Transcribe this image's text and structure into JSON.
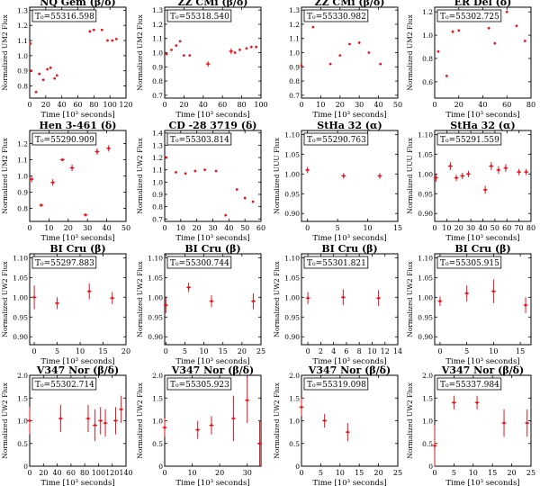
{
  "figure": {
    "marker_color": "#e8141c",
    "time_label": "Time [10³ seconds]"
  },
  "chart_data": [
    {
      "type": "scatter",
      "title": "NQ Gem (β/δ)",
      "annotation": "T₀=55316.598",
      "ylabel": "Normalized UM2 Flux",
      "xlabel": "Time [10³ seconds]",
      "xlim": [
        0,
        120
      ],
      "ylim": [
        0.72,
        1.32
      ],
      "xticks": [
        0,
        20,
        40,
        60,
        80,
        100,
        120
      ],
      "yticks": [
        0.8,
        0.9,
        1.0,
        1.1,
        1.2,
        1.3
      ],
      "ytick_labels": [
        "0.8",
        "0.9",
        "1.0",
        "1.1",
        "1.2",
        "1.3"
      ],
      "points": [
        [
          1,
          1.08
        ],
        [
          2,
          0.9
        ],
        [
          8,
          0.76
        ],
        [
          12,
          0.88
        ],
        [
          17,
          0.84
        ],
        [
          22,
          0.91
        ],
        [
          26,
          0.92
        ],
        [
          31,
          0.85
        ],
        [
          34,
          0.87
        ],
        [
          75,
          1.16
        ],
        [
          80,
          1.17
        ],
        [
          90,
          1.17
        ],
        [
          97,
          1.1
        ],
        [
          103,
          1.1
        ],
        [
          108,
          1.11
        ]
      ],
      "err": [
        0,
        0,
        0,
        0,
        0,
        0,
        0,
        0,
        0,
        0,
        0,
        0,
        0,
        0,
        0
      ]
    },
    {
      "type": "scatter",
      "title": "ZZ CMi (β/δ)",
      "annotation": "T₀=55318.540",
      "ylabel": "Normalized UM2 Flux",
      "xlabel": "Time [10³ seconds]",
      "xlim": [
        0,
        100
      ],
      "ylim": [
        0.68,
        1.32
      ],
      "xticks": [
        0,
        20,
        40,
        60,
        80,
        100
      ],
      "yticks": [
        0.7,
        0.8,
        0.9,
        1.0,
        1.1,
        1.2,
        1.3
      ],
      "ytick_labels": [
        "0.7",
        "0.8",
        "0.9",
        "1.0",
        "1.1",
        "1.2",
        "1.3"
      ],
      "points": [
        [
          2,
          0.99
        ],
        [
          7,
          1.02
        ],
        [
          12,
          1.05
        ],
        [
          16,
          1.08
        ],
        [
          20,
          0.98
        ],
        [
          26,
          0.98
        ],
        [
          45,
          0.92
        ],
        [
          69,
          1.01
        ],
        [
          73,
          1.0
        ],
        [
          78,
          1.02
        ],
        [
          85,
          1.03
        ],
        [
          90,
          1.04
        ],
        [
          95,
          1.04
        ]
      ],
      "err": [
        0,
        0,
        0,
        0,
        0,
        0,
        0.02,
        0.02,
        0,
        0,
        0,
        0,
        0
      ]
    },
    {
      "type": "scatter",
      "title": "ZZ CMi (β/δ)",
      "annotation": "T₀=55330.982",
      "ylabel": "",
      "xlabel": "Time [10³ seconds]",
      "xlim": [
        0,
        50
      ],
      "ylim": [
        0.68,
        1.32
      ],
      "xticks": [
        0,
        10,
        20,
        30,
        40,
        50
      ],
      "yticks": [
        0.7,
        0.8,
        0.9,
        1.0,
        1.1,
        1.2,
        1.3
      ],
      "ytick_labels": [
        "0.7",
        "0.8",
        "0.9",
        "1.0",
        "1.1",
        "1.2",
        "1.3"
      ],
      "points": [
        [
          0,
          0.91
        ],
        [
          6,
          1.18
        ],
        [
          15,
          0.92
        ],
        [
          20,
          0.98
        ],
        [
          25,
          1.06
        ],
        [
          30,
          1.07
        ],
        [
          35,
          1.0
        ],
        [
          41,
          0.92
        ]
      ],
      "err": [
        0,
        0,
        0,
        0,
        0,
        0,
        0,
        0
      ]
    },
    {
      "type": "scatter",
      "title": "ER Del (δ)",
      "annotation": "T₀=55302.725",
      "ylabel": "Normalized UM2 Flux",
      "xlabel": "Time [10³ seconds]",
      "xlim": [
        0,
        80
      ],
      "ylim": [
        0.46,
        1.24
      ],
      "xticks": [
        0,
        20,
        40,
        60,
        80
      ],
      "yticks": [
        0.6,
        0.8,
        1.0,
        1.2
      ],
      "ytick_labels": [
        "0.6",
        "0.8",
        "1.0",
        "1.2"
      ],
      "points": [
        [
          3,
          0.86
        ],
        [
          10,
          0.65
        ],
        [
          15,
          1.03
        ],
        [
          20,
          1.04
        ],
        [
          45,
          1.06
        ],
        [
          50,
          0.93
        ],
        [
          60,
          1.2
        ],
        [
          68,
          1.08
        ],
        [
          75,
          0.95
        ]
      ],
      "err": [
        0,
        0,
        0,
        0,
        0,
        0,
        0,
        0,
        0
      ]
    },
    {
      "type": "scatter",
      "title": "Hen 3-461 (δ)",
      "annotation": "T₀=55290.909",
      "ylabel": "Normalized UM2 Flux",
      "xlabel": "Time [10³ seconds]",
      "xlim": [
        0,
        50
      ],
      "ylim": [
        0.72,
        1.28
      ],
      "xticks": [
        0,
        10,
        20,
        30,
        40,
        50
      ],
      "yticks": [
        0.8,
        0.9,
        1.0,
        1.1,
        1.2
      ],
      "ytick_labels": [
        "0.8",
        "0.9",
        "1.0",
        "1.1",
        "1.2"
      ],
      "points": [
        [
          1,
          0.98
        ],
        [
          6,
          0.82
        ],
        [
          12,
          0.96
        ],
        [
          17,
          1.1
        ],
        [
          22,
          1.05
        ],
        [
          29,
          0.76
        ],
        [
          35,
          1.15
        ],
        [
          41,
          1.17
        ]
      ],
      "err": [
        0.02,
        0.01,
        0.02,
        0.01,
        0.02,
        0.01,
        0.02,
        0.02
      ]
    },
    {
      "type": "scatter",
      "title": "CD -28 3719 (δ)",
      "annotation": "T₀=55303.814",
      "ylabel": "Normalized UW2 Flux",
      "xlabel": "Time [10³ seconds]",
      "xlim": [
        0,
        60
      ],
      "ylim": [
        0.68,
        1.42
      ],
      "xticks": [
        0,
        10,
        20,
        30,
        40,
        50,
        60
      ],
      "yticks": [
        0.7,
        0.8,
        0.9,
        1.0,
        1.1,
        1.2,
        1.3,
        1.4
      ],
      "ytick_labels": [
        "0.7",
        "0.8",
        "0.9",
        "1.0",
        "1.1",
        "1.2",
        "1.3",
        "1.4"
      ],
      "points": [
        [
          1,
          1.2
        ],
        [
          7,
          1.08
        ],
        [
          13,
          1.07
        ],
        [
          19,
          1.09
        ],
        [
          25,
          1.1
        ],
        [
          32,
          1.09
        ],
        [
          38,
          0.73
        ],
        [
          45,
          0.94
        ],
        [
          50,
          0.87
        ],
        [
          55,
          0.84
        ]
      ],
      "err": [
        0,
        0,
        0,
        0,
        0,
        0,
        0,
        0,
        0,
        0
      ]
    },
    {
      "type": "scatter",
      "title": "StHa 32 (α)",
      "annotation": "T₀=55290.763",
      "ylabel": "Normalized UUU Flux",
      "xlabel": "Time [10³ seconds]",
      "xlim": [
        -1,
        15
      ],
      "ylim": [
        0.88,
        1.11
      ],
      "xticks": [
        0,
        5,
        10,
        15
      ],
      "yticks": [
        0.9,
        0.95,
        1.0,
        1.05,
        1.1
      ],
      "ytick_labels": [
        "0.90",
        "0.95",
        "1.00",
        "1.05",
        "1.10"
      ],
      "points": [
        [
          0,
          1.01
        ],
        [
          6,
          0.995
        ],
        [
          12,
          0.995
        ]
      ],
      "err": [
        0.008,
        0.007,
        0.007
      ]
    },
    {
      "type": "scatter",
      "title": "StHa 32 (α)",
      "annotation": "T₀=55291.559",
      "ylabel": "Normalized UUU Flux",
      "xlabel": "Time [10³ seconds]",
      "xlim": [
        0,
        80
      ],
      "ylim": [
        0.88,
        1.11
      ],
      "xticks": [
        0,
        10,
        20,
        30,
        40,
        50,
        60,
        70,
        80
      ],
      "yticks": [
        0.9,
        0.95,
        1.0,
        1.05,
        1.1
      ],
      "ytick_labels": [
        "0.90",
        "0.95",
        "1.00",
        "1.05",
        "1.10"
      ],
      "points": [
        [
          1,
          0.99
        ],
        [
          13,
          1.02
        ],
        [
          18,
          0.99
        ],
        [
          23,
          0.995
        ],
        [
          28,
          1.0
        ],
        [
          42,
          0.96
        ],
        [
          47,
          1.02
        ],
        [
          53,
          1.01
        ],
        [
          59,
          1.015
        ],
        [
          70,
          1.005
        ],
        [
          76,
          1.005
        ]
      ],
      "err": [
        0.01,
        0.01,
        0.008,
        0.008,
        0.008,
        0.01,
        0.01,
        0.01,
        0.01,
        0.008,
        0.008
      ]
    },
    {
      "type": "scatter",
      "title": "BI Cru (β)",
      "annotation": "T₀=55297.883",
      "ylabel": "Normalized UW2 Flux",
      "xlabel": "Time [10³ seconds]",
      "xlim": [
        -1,
        20
      ],
      "ylim": [
        0.88,
        1.11
      ],
      "xticks": [
        0,
        5,
        10,
        15,
        20
      ],
      "yticks": [
        0.9,
        0.95,
        1.0,
        1.05,
        1.1
      ],
      "ytick_labels": [
        "0.90",
        "0.95",
        "1.00",
        "1.05",
        "1.10"
      ],
      "points": [
        [
          0,
          1.0
        ],
        [
          5,
          0.985
        ],
        [
          12,
          1.015
        ],
        [
          17,
          0.998
        ]
      ],
      "err": [
        0.03,
        0.015,
        0.02,
        0.015
      ]
    },
    {
      "type": "scatter",
      "title": "BI Cru (β)",
      "annotation": "T₀=55300.744",
      "ylabel": "Normalized UW2 Flux",
      "xlabel": "Time [10³ seconds]",
      "xlim": [
        -0.3,
        25
      ],
      "ylim": [
        0.88,
        1.11
      ],
      "xticks": [
        0,
        5,
        10,
        15,
        20,
        25
      ],
      "yticks": [
        0.9,
        0.95,
        1.0,
        1.05,
        1.1
      ],
      "ytick_labels": [
        "0.90",
        "0.95",
        "1.00",
        "1.05",
        "1.10"
      ],
      "points": [
        [
          0,
          0.98
        ],
        [
          6,
          1.025
        ],
        [
          12,
          0.99
        ],
        [
          23,
          0.99
        ]
      ],
      "err": [
        0.02,
        0.012,
        0.015,
        0.02
      ]
    },
    {
      "type": "scatter",
      "title": "BI Cru (β)",
      "annotation": "T₀=55301.821",
      "ylabel": "Normalized UW2 Flux",
      "xlabel": "Time [10³ seconds]",
      "xlim": [
        -1,
        14
      ],
      "ylim": [
        0.88,
        1.11
      ],
      "xticks": [
        0,
        2,
        4,
        6,
        8,
        10,
        12,
        14
      ],
      "yticks": [
        0.9,
        0.95,
        1.0,
        1.05,
        1.1
      ],
      "ytick_labels": [
        "0.90",
        "0.95",
        "1.00",
        "1.05",
        "1.10"
      ],
      "points": [
        [
          0,
          0.998
        ],
        [
          5.5,
          1.0
        ],
        [
          11,
          0.998
        ]
      ],
      "err": [
        0.015,
        0.02,
        0.02
      ]
    },
    {
      "type": "scatter",
      "title": "BI Cru (β)",
      "annotation": "T₀=55305.915",
      "ylabel": "Normalized UW2 Flux",
      "xlabel": "Time [10³ seconds]",
      "xlim": [
        -1,
        17
      ],
      "ylim": [
        0.88,
        1.11
      ],
      "xticks": [
        0,
        5,
        10,
        15
      ],
      "yticks": [
        0.9,
        0.95,
        1.0,
        1.05,
        1.1
      ],
      "ytick_labels": [
        "0.90",
        "0.95",
        "1.00",
        "1.05",
        "1.10"
      ],
      "points": [
        [
          0,
          0.99
        ],
        [
          5,
          1.01
        ],
        [
          10,
          1.015
        ],
        [
          16,
          0.98
        ]
      ],
      "err": [
        0.012,
        0.02,
        0.03,
        0.02
      ]
    },
    {
      "type": "scatter",
      "title": "V347 Nor (β/δ)",
      "annotation": "T₀=55302.714",
      "ylabel": "Normalized UW2 Flux",
      "xlabel": "Time [10³ seconds]",
      "xlim": [
        0,
        140
      ],
      "ylim": [
        0,
        2
      ],
      "xticks": [
        0,
        20,
        40,
        60,
        80,
        100,
        120,
        140
      ],
      "yticks": [
        0,
        0.5,
        1.0,
        1.5,
        2.0
      ],
      "ytick_labels": [
        "0",
        "0.5",
        "1.0",
        "1.5",
        "2.0"
      ],
      "points": [
        [
          0,
          1.0
        ],
        [
          45,
          1.05
        ],
        [
          85,
          1.05
        ],
        [
          95,
          0.9
        ],
        [
          103,
          1.0
        ],
        [
          110,
          0.95
        ],
        [
          125,
          1.0
        ],
        [
          133,
          1.25
        ]
      ],
      "err": [
        0.3,
        0.3,
        0.3,
        0.35,
        0.3,
        0.3,
        0.3,
        0.3
      ]
    },
    {
      "type": "scatter",
      "title": "V347 Nor (β/δ)",
      "annotation": "T₀=55305.923",
      "ylabel": "Normalized UW2 Flux",
      "xlabel": "Time [10³ seconds]",
      "xlim": [
        0,
        35
      ],
      "ylim": [
        0,
        2
      ],
      "xticks": [
        0,
        10,
        20,
        30
      ],
      "yticks": [
        0,
        0.5,
        1.0,
        1.5,
        2.0
      ],
      "ytick_labels": [
        "0",
        "0.5",
        "1.0",
        "1.5",
        "2.0"
      ],
      "points": [
        [
          0,
          0.85
        ],
        [
          12,
          0.8
        ],
        [
          17,
          0.9
        ],
        [
          25,
          1.05
        ],
        [
          30,
          1.45
        ],
        [
          34.5,
          0.5
        ]
      ],
      "err": [
        0.2,
        0.2,
        0.2,
        0.5,
        0.5,
        0.5
      ]
    },
    {
      "type": "scatter",
      "title": "V347 Nor (β/δ)",
      "annotation": "T₀=55319.098",
      "ylabel": "Normalized UW2 Flux",
      "xlabel": "Time [10³ seconds]",
      "xlim": [
        0,
        25
      ],
      "ylim": [
        0,
        2
      ],
      "xticks": [
        0,
        5,
        10,
        15,
        20,
        25
      ],
      "yticks": [
        0,
        0.5,
        1.0,
        1.5,
        2.0
      ],
      "ytick_labels": [
        "0",
        "0.5",
        "1.0",
        "1.5",
        "2.0"
      ],
      "points": [
        [
          0,
          1.3
        ],
        [
          6,
          1.0
        ],
        [
          12,
          0.75
        ]
      ],
      "err": [
        0.2,
        0.15,
        0.2
      ]
    },
    {
      "type": "scatter",
      "title": "V347 Nor (β/δ)",
      "annotation": "T₀=55337.984",
      "ylabel": "Normalized UW2 Flux",
      "xlabel": "Time [10³ seconds]",
      "xlim": [
        0,
        25
      ],
      "ylim": [
        0,
        2
      ],
      "xticks": [
        0,
        5,
        10,
        15,
        20,
        25
      ],
      "yticks": [
        0,
        0.5,
        1.0,
        1.5,
        2.0
      ],
      "ytick_labels": [
        "0",
        "0.5",
        "1.0",
        "1.5",
        "2.0"
      ],
      "points": [
        [
          0,
          0.45
        ],
        [
          5,
          1.4
        ],
        [
          11,
          1.4
        ],
        [
          18,
          0.95
        ],
        [
          24,
          0.95
        ]
      ],
      "err": [
        0.45,
        0.15,
        0.15,
        0.3,
        0.3
      ]
    }
  ]
}
